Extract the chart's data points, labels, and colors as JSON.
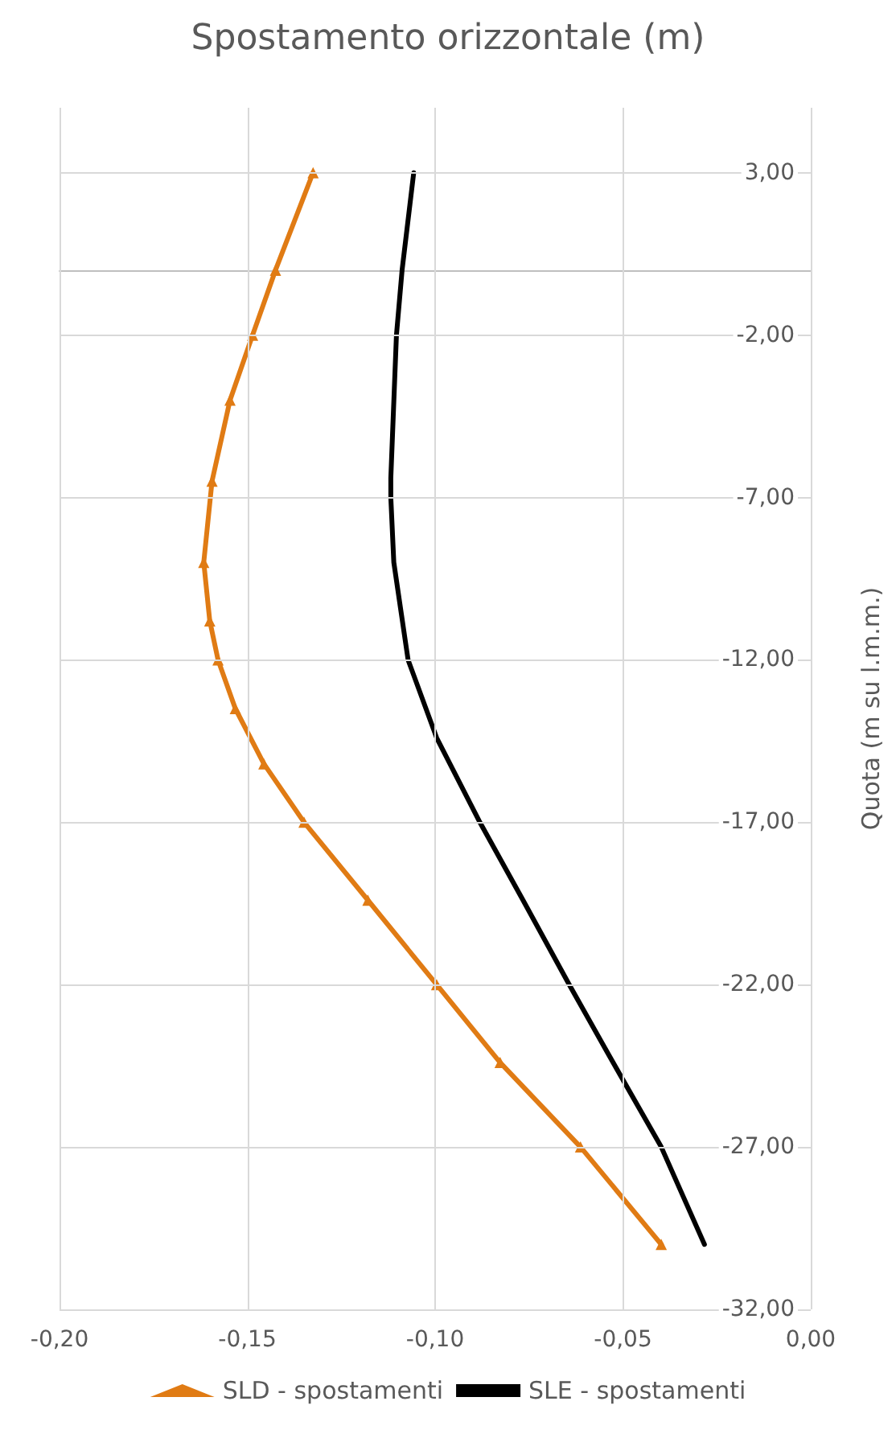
{
  "chart_data": {
    "type": "line",
    "title": "Spostamento orizzontale (m)",
    "ylabel": "Quota (m su l.m.m.)",
    "xlim": [
      -0.2,
      0
    ],
    "ylim": [
      -32,
      5
    ],
    "xticks": [
      {
        "value": -0.2,
        "label": "-0,20"
      },
      {
        "value": -0.15,
        "label": "-0,15"
      },
      {
        "value": -0.1,
        "label": "-0,10"
      },
      {
        "value": -0.05,
        "label": "-0,05"
      },
      {
        "value": 0,
        "label": "0,00"
      }
    ],
    "yticks": [
      {
        "value": -32,
        "label": "-32,00"
      },
      {
        "value": -27,
        "label": "-27,00"
      },
      {
        "value": -22,
        "label": "-22,00"
      },
      {
        "value": -17,
        "label": "-17,00"
      },
      {
        "value": -12,
        "label": "-12,00"
      },
      {
        "value": -7,
        "label": "-7,00"
      },
      {
        "value": -2,
        "label": "-2,00"
      },
      {
        "value": 3,
        "label": "3,00"
      }
    ],
    "grid": true,
    "legend": "bottom",
    "line_style": "solid",
    "series": [
      {
        "name": "SLD - spostamenti",
        "color": "#e07b14",
        "marker": "triangle",
        "x": [
          -0.1325,
          -0.1425,
          -0.1486,
          -0.1546,
          -0.1594,
          -0.1616,
          -0.16,
          -0.1578,
          -0.1532,
          -0.1456,
          -0.1349,
          -0.1179,
          -0.0996,
          -0.0827,
          -0.0613,
          -0.0398
        ],
        "values": [
          3,
          0,
          -2,
          -4,
          -6.5,
          -9,
          -10.8,
          -12,
          -13.5,
          -15.2,
          -17,
          -19.4,
          -22,
          -24.4,
          -27,
          -30
        ]
      },
      {
        "name": "SLE - spostamenti",
        "color": "#000000",
        "marker": "none",
        "x": [
          -0.1057,
          -0.1088,
          -0.1103,
          -0.1118,
          -0.1118,
          -0.111,
          -0.1072,
          -0.0996,
          -0.0881,
          -0.0766,
          -0.0643,
          -0.0536,
          -0.0398,
          -0.0283
        ],
        "values": [
          3,
          0,
          -2,
          -6.4,
          -7,
          -9,
          -12,
          -14.4,
          -17,
          -19.4,
          -22,
          -24.2,
          -27,
          -30
        ]
      }
    ]
  }
}
